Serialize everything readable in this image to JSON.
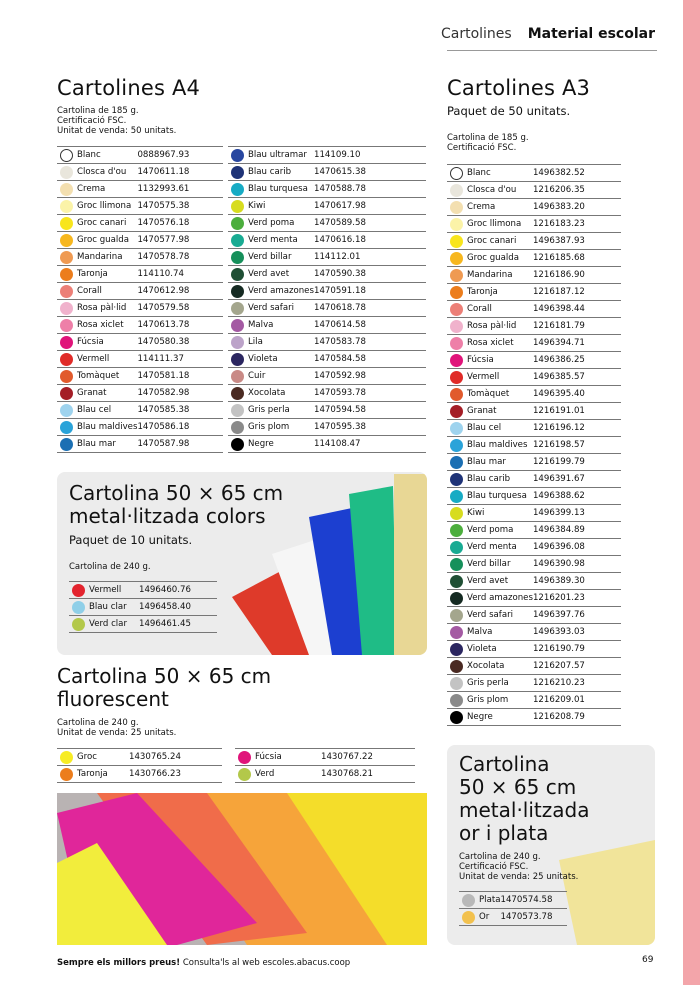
{
  "header": {
    "section": "Cartolines",
    "category": "Material escolar"
  },
  "a4": {
    "title": "Cartolines A4",
    "notes": [
      "Cartolina de 185 g.",
      "Certificació FSC.",
      "Unitat de venda: 50 unitats."
    ],
    "col1": [
      [
        "Blanc",
        "0888967.93",
        "#ffffff"
      ],
      [
        "Closca d'ou",
        "1470611.18",
        "#e9e6dc"
      ],
      [
        "Crema",
        "1132993.61",
        "#f3dfb0"
      ],
      [
        "Groc llimona",
        "1470575.38",
        "#fbf3a8"
      ],
      [
        "Groc canari",
        "1470576.18",
        "#f8e51c"
      ],
      [
        "Groc gualda",
        "1470577.98",
        "#f7b71e"
      ],
      [
        "Mandarina",
        "1470578.78",
        "#ef9a52"
      ],
      [
        "Taronja",
        "114110.74",
        "#ec7d1c"
      ],
      [
        "Corall",
        "1470612.98",
        "#ec7f77"
      ],
      [
        "Rosa pàl·lid",
        "1470579.58",
        "#f0b2cc"
      ],
      [
        "Rosa xiclet",
        "1470613.78",
        "#ee7fa8"
      ],
      [
        "Fúcsia",
        "1470580.38",
        "#e0147a"
      ],
      [
        "Vermell",
        "114111.37",
        "#e02b28"
      ],
      [
        "Tomàquet",
        "1470581.18",
        "#e15a2c"
      ],
      [
        "Granat",
        "1470582.98",
        "#a41d26"
      ],
      [
        "Blau cel",
        "1470585.38",
        "#9ed3ee"
      ],
      [
        "Blau maldives",
        "1470586.18",
        "#2aa3d9"
      ],
      [
        "Blau mar",
        "1470587.98",
        "#1b6fb3"
      ]
    ],
    "col2": [
      [
        "Blau ultramar",
        "114109.10",
        "#2847a0"
      ],
      [
        "Blau carib",
        "1470615.38",
        "#1f3377"
      ],
      [
        "Blau turquesa",
        "1470588.78",
        "#17abc4"
      ],
      [
        "Kiwi",
        "1470617.98",
        "#d7dc1f"
      ],
      [
        "Verd poma",
        "1470589.58",
        "#4cae3d"
      ],
      [
        "Verd menta",
        "1470616.18",
        "#19ab93"
      ],
      [
        "Verd billar",
        "114112.01",
        "#16905b"
      ],
      [
        "Verd avet",
        "1470590.38",
        "#1f4f34"
      ],
      [
        "Verd amazones",
        "1470591.18",
        "#152a22"
      ],
      [
        "Verd safari",
        "1470618.78",
        "#a4a68d"
      ],
      [
        "Malva",
        "1470614.58",
        "#a45aa3"
      ],
      [
        "Lila",
        "1470583.78",
        "#bca3c9"
      ],
      [
        "Violeta",
        "1470584.58",
        "#2b2660"
      ],
      [
        "Cuir",
        "1470592.98",
        "#c98a86"
      ],
      [
        "Xocolata",
        "1470593.78",
        "#4a2a22"
      ],
      [
        "Gris perla",
        "1470594.58",
        "#c3c3c3"
      ],
      [
        "Gris plom",
        "1470595.38",
        "#8a8a8a"
      ],
      [
        "Negre",
        "114108.47",
        "#000000"
      ]
    ]
  },
  "a3": {
    "title": "Cartolines A3",
    "subtitle": "Paquet de 50 unitats.",
    "notes": [
      "Cartolina de 185 g.",
      "Certificació FSC."
    ],
    "rows": [
      [
        "Blanc",
        "1496382.52",
        "#ffffff"
      ],
      [
        "Closca d'ou",
        "1216206.35",
        "#e9e6dc"
      ],
      [
        "Crema",
        "1496383.20",
        "#f3dfb0"
      ],
      [
        "Groc llimona",
        "1216183.23",
        "#fbf3a8"
      ],
      [
        "Groc canari",
        "1496387.93",
        "#f8e51c"
      ],
      [
        "Groc gualda",
        "1216185.68",
        "#f7b71e"
      ],
      [
        "Mandarina",
        "1216186.90",
        "#ef9a52"
      ],
      [
        "Taronja",
        "1216187.12",
        "#ec7d1c"
      ],
      [
        "Corall",
        "1496398.44",
        "#ec7f77"
      ],
      [
        "Rosa pàl·lid",
        "1216181.79",
        "#f0b2cc"
      ],
      [
        "Rosa xiclet",
        "1496394.71",
        "#ee7fa8"
      ],
      [
        "Fúcsia",
        "1496386.25",
        "#e0147a"
      ],
      [
        "Vermell",
        "1496385.57",
        "#e02b28"
      ],
      [
        "Tomàquet",
        "1496395.40",
        "#e15a2c"
      ],
      [
        "Granat",
        "1216191.01",
        "#a41d26"
      ],
      [
        "Blau cel",
        "1216196.12",
        "#9ed3ee"
      ],
      [
        "Blau maldives",
        "1216198.57",
        "#2aa3d9"
      ],
      [
        "Blau mar",
        "1216199.79",
        "#1b6fb3"
      ],
      [
        "Blau carib",
        "1496391.67",
        "#1f3377"
      ],
      [
        "Blau turquesa",
        "1496388.62",
        "#17abc4"
      ],
      [
        "Kiwi",
        "1496399.13",
        "#d7dc1f"
      ],
      [
        "Verd poma",
        "1496384.89",
        "#4cae3d"
      ],
      [
        "Verd menta",
        "1496396.08",
        "#19ab93"
      ],
      [
        "Verd billar",
        "1496390.98",
        "#16905b"
      ],
      [
        "Verd avet",
        "1496389.30",
        "#1f4f34"
      ],
      [
        "Verd amazones",
        "1216201.23",
        "#152a22"
      ],
      [
        "Verd safari",
        "1496397.76",
        "#a4a68d"
      ],
      [
        "Malva",
        "1496393.03",
        "#a45aa3"
      ],
      [
        "Violeta",
        "1216190.79",
        "#2b2660"
      ],
      [
        "Xocolata",
        "1216207.57",
        "#4a2a22"
      ],
      [
        "Gris perla",
        "1216210.23",
        "#c3c3c3"
      ],
      [
        "Gris plom",
        "1216209.01",
        "#8a8a8a"
      ],
      [
        "Negre",
        "1216208.79",
        "#000000"
      ]
    ]
  },
  "metal": {
    "title1": "Cartolina 50 × 65 cm",
    "title2": "metal·litzada colors",
    "subtitle": "Paquet de 10 unitats.",
    "notes": [
      "Cartolina de 240 g."
    ],
    "rows": [
      [
        "Vermell",
        "1496460.76",
        "#e3232d"
      ],
      [
        "Blau clar",
        "1496458.40",
        "#8fcfe8"
      ],
      [
        "Verd clar",
        "1496461.45",
        "#b3c84a"
      ]
    ]
  },
  "fluor": {
    "title1": "Cartolina 50 × 65 cm",
    "title2": "fluorescent",
    "notes": [
      "Cartolina de 240 g.",
      "Unitat de venda: 25 unitats."
    ],
    "col1": [
      [
        "Groc",
        "1430765.24",
        "#f7ec24"
      ],
      [
        "Taronja",
        "1430766.23",
        "#ec7d1c"
      ]
    ],
    "col2": [
      [
        "Fúcsia",
        "1430767.22",
        "#e0147a"
      ],
      [
        "Verd",
        "1430768.21",
        "#b3c84a"
      ]
    ]
  },
  "gold": {
    "title": [
      "Cartolina",
      "50 × 65 cm",
      "metal·litzada",
      "or i plata"
    ],
    "notes": [
      "Cartolina de 240 g.",
      "Certificació FSC.",
      "Unitat de venda: 25 unitats."
    ],
    "rows": [
      [
        "Plata",
        "1470574.58",
        "#b8b8b8"
      ],
      [
        "Or",
        "1470573.78",
        "#f2c14e"
      ]
    ]
  },
  "footer": {
    "bold": "Sempre els millors preus!",
    "text": " Consulta'ls al web escoles.abacus.coop",
    "page": "69"
  }
}
